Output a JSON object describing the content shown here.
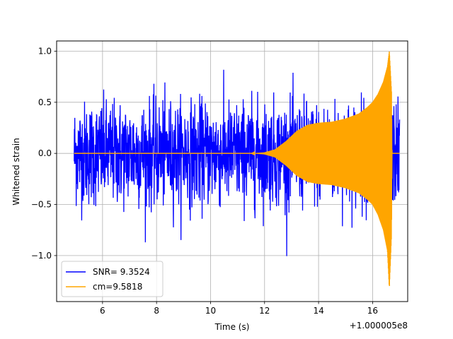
{
  "chart_data": {
    "type": "line",
    "xlabel": "Time (s)",
    "ylabel": "Whitened strain",
    "x_offset_label": "+1.000005e8",
    "xlim": [
      4.3,
      17.3
    ],
    "ylim": [
      -1.45,
      1.1
    ],
    "xticks": [
      6,
      8,
      10,
      12,
      14,
      16
    ],
    "xtick_labels": [
      "6",
      "8",
      "10",
      "12",
      "14",
      "16"
    ],
    "yticks": [
      -1.0,
      -0.5,
      0.0,
      0.5,
      1.0
    ],
    "ytick_labels": [
      "−1.0",
      "−0.5",
      "0.0",
      "0.5",
      "1.0"
    ],
    "grid": true,
    "legend_position": "lower-left",
    "series": [
      {
        "name": "SNR= 9.3524",
        "color": "#0000ff",
        "style": "noise",
        "x_range": [
          4.95,
          17.0
        ],
        "envelope_typical": [
          -0.55,
          0.55
        ],
        "extremes_observed": [
          -1.1,
          0.92
        ]
      },
      {
        "name": "cm=9.5818",
        "color": "#ffa500",
        "style": "chirp",
        "x_range": [
          4.95,
          17.0
        ],
        "envelope": {
          "x": [
            4.95,
            11.5,
            12.0,
            12.4,
            12.8,
            13.2,
            13.6,
            14.0,
            14.5,
            15.0,
            15.5,
            15.8,
            16.0,
            16.2,
            16.4,
            16.55,
            16.62,
            16.7,
            16.72,
            17.0
          ],
          "upper": [
            0.0,
            0.0,
            0.01,
            0.04,
            0.12,
            0.22,
            0.28,
            0.3,
            0.31,
            0.34,
            0.39,
            0.45,
            0.5,
            0.58,
            0.7,
            0.85,
            1.0,
            0.6,
            0.0,
            0.0
          ],
          "lower": [
            0.0,
            0.0,
            -0.01,
            -0.04,
            -0.12,
            -0.22,
            -0.28,
            -0.3,
            -0.31,
            -0.34,
            -0.39,
            -0.45,
            -0.5,
            -0.6,
            -0.75,
            -0.95,
            -1.32,
            -0.8,
            0.0,
            0.0
          ]
        }
      }
    ]
  }
}
